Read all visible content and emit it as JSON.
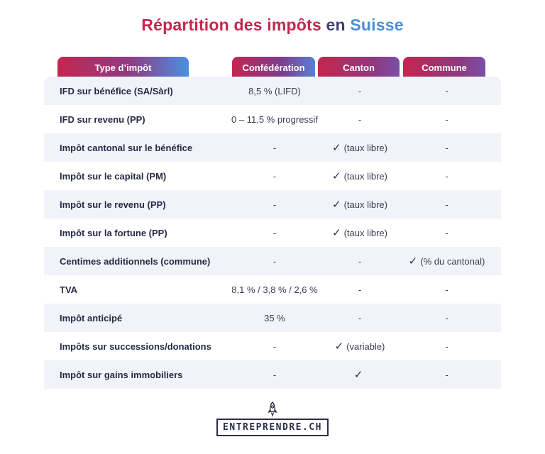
{
  "title": {
    "part1": "Répartition des impôts ",
    "part2": "en ",
    "part3": "Suisse"
  },
  "headers": {
    "type": "Type d’impôt",
    "confederation": "Confédération",
    "canton": "Canton",
    "commune": "Commune"
  },
  "check_icon": "check-icon",
  "rows": [
    {
      "label": "IFD sur bénéfice (SA/Sàrl)",
      "confederation": "8,5 % (LIFD)",
      "canton": "-",
      "commune": "-"
    },
    {
      "label": "IFD sur revenu (PP)",
      "confederation": "0 – 11,5 % progressif",
      "canton": "-",
      "commune": "-"
    },
    {
      "label": "Impôt cantonal sur le bénéfice",
      "confederation": "-",
      "canton": "(taux libre)",
      "commune": "-"
    },
    {
      "label": "Impôt sur le capital (PM)",
      "confederation": "-",
      "canton": "(taux libre)",
      "commune": "-"
    },
    {
      "label": "Impôt sur le revenu (PP)",
      "confederation": "-",
      "canton": "(taux libre)",
      "commune": "-"
    },
    {
      "label": "Impôt sur la fortune (PP)",
      "confederation": "-",
      "canton": "(taux libre)",
      "commune": "-"
    },
    {
      "label": "Centimes additionnels (commune)",
      "confederation": "-",
      "canton": "-",
      "commune": "(% du cantonal)"
    },
    {
      "label": "TVA",
      "confederation": "8,1 % / 3,8 % / 2,6 %",
      "canton": "-",
      "commune": "-"
    },
    {
      "label": "Impôt anticipé",
      "confederation": "35 %",
      "canton": "-",
      "commune": "-"
    },
    {
      "label": "Impôts sur successions/donations",
      "confederation": "-",
      "canton": "(variable)",
      "commune": "-"
    },
    {
      "label": "Impôt sur gains immobiliers",
      "confederation": "-",
      "canton": "",
      "commune": "-"
    }
  ],
  "checks": {
    "canton": [
      false,
      false,
      true,
      true,
      true,
      true,
      false,
      false,
      false,
      true,
      true
    ],
    "commune": [
      false,
      false,
      false,
      false,
      false,
      false,
      true,
      false,
      false,
      false,
      false
    ]
  },
  "logo": {
    "text": "ENTREPRENDRE.CH",
    "icon": "rocket-icon"
  },
  "colors": {
    "accent_red": "#c4264f",
    "accent_blue": "#4a8fd6",
    "text_dark": "#2b2d4a",
    "row_shade": "#f2f3f8"
  }
}
